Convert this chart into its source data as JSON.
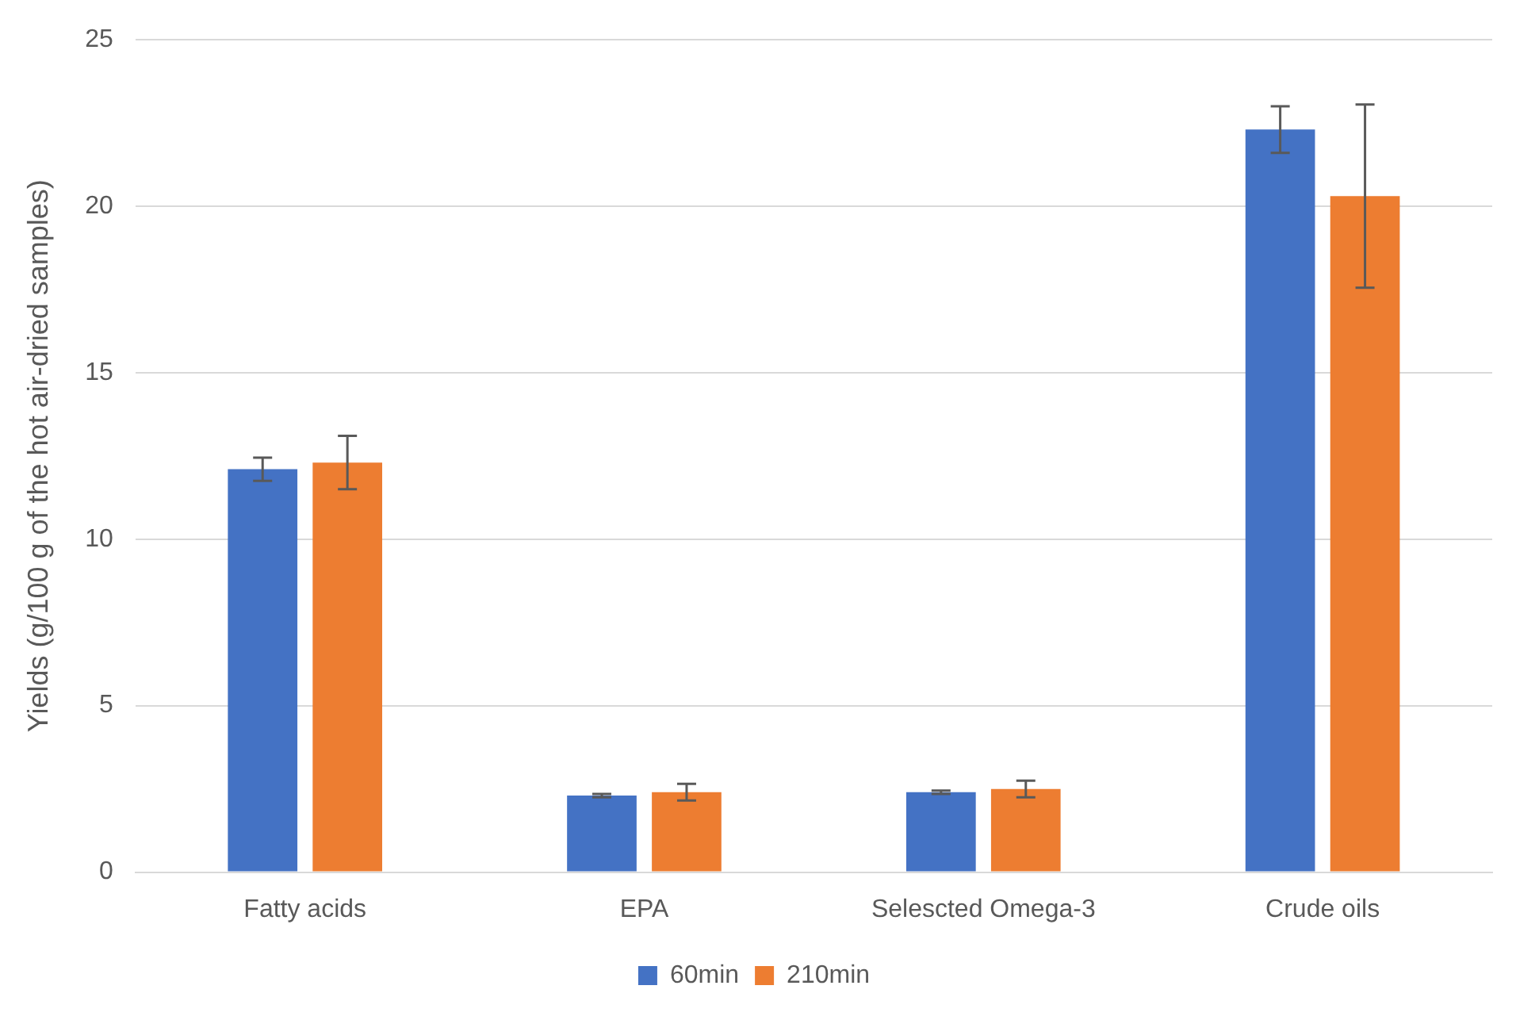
{
  "chart_data": {
    "type": "bar",
    "ylabel": "Yields (g/100 g of the hot air-dried samples)",
    "categories": [
      "Fatty acids",
      "EPA",
      "Selescted Omega-3",
      "Crude oils"
    ],
    "series": [
      {
        "name": "60min",
        "color": "#4472c4",
        "values": [
          12.1,
          2.3,
          2.4,
          22.3
        ],
        "errors": [
          0.35,
          0.05,
          0.05,
          0.7
        ]
      },
      {
        "name": "210min",
        "color": "#ed7d31",
        "values": [
          12.3,
          2.4,
          2.5,
          20.3
        ],
        "errors": [
          0.8,
          0.25,
          0.25,
          2.75
        ]
      }
    ],
    "ylim": [
      0,
      25
    ],
    "yticks": [
      0,
      5,
      10,
      15,
      20,
      25
    ],
    "grid": "y",
    "legend": "bottom"
  }
}
